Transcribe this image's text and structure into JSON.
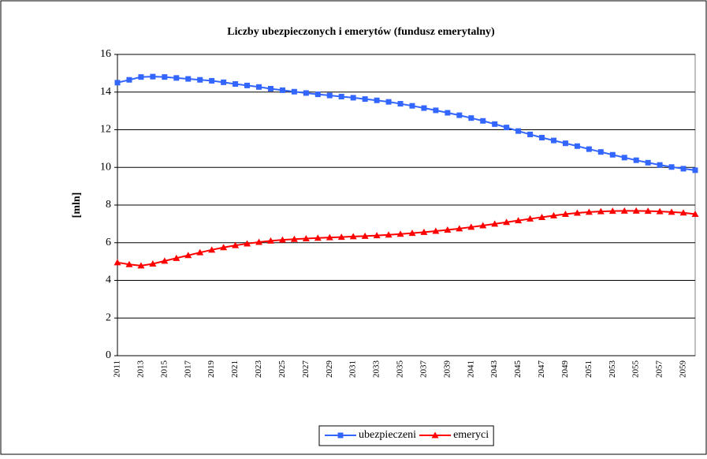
{
  "chart_data": {
    "type": "line",
    "title": "Liczby ubezpieczonych i emerytów (fundusz emerytalny)",
    "ylabel": "[mln]",
    "categories": [
      "2011",
      null,
      "2013",
      null,
      "2015",
      null,
      "2017",
      null,
      "2019",
      null,
      "2021",
      null,
      "2023",
      null,
      "2025",
      null,
      "2027",
      null,
      "2029",
      null,
      "2031",
      null,
      "2033",
      null,
      "2035",
      null,
      "2037",
      null,
      "2039",
      null,
      "2041",
      null,
      "2043",
      null,
      "2045",
      null,
      "2047",
      null,
      "2049",
      null,
      "2051",
      null,
      "2053",
      null,
      "2055",
      null,
      "2057",
      null,
      "2059",
      null
    ],
    "series": [
      {
        "name": "ubezpieczeni",
        "color": "#3366ff",
        "marker": "square",
        "values": [
          14.5,
          14.65,
          14.8,
          14.82,
          14.8,
          14.75,
          14.7,
          14.65,
          14.6,
          14.52,
          14.43,
          14.35,
          14.27,
          14.18,
          14.1,
          14.02,
          13.95,
          13.88,
          13.82,
          13.76,
          13.7,
          13.63,
          13.56,
          13.48,
          13.38,
          13.27,
          13.15,
          13.03,
          12.9,
          12.77,
          12.62,
          12.47,
          12.3,
          12.12,
          11.93,
          11.75,
          11.58,
          11.43,
          11.28,
          11.13,
          10.97,
          10.82,
          10.67,
          10.52,
          10.38,
          10.25,
          10.13,
          10.02,
          9.93,
          9.85
        ]
      },
      {
        "name": "emeryci",
        "color": "#ff0000",
        "marker": "triangle",
        "values": [
          4.95,
          4.85,
          4.78,
          4.88,
          5.03,
          5.18,
          5.33,
          5.48,
          5.62,
          5.75,
          5.86,
          5.95,
          6.03,
          6.1,
          6.15,
          6.19,
          6.22,
          6.25,
          6.28,
          6.3,
          6.33,
          6.35,
          6.38,
          6.42,
          6.46,
          6.51,
          6.56,
          6.62,
          6.68,
          6.75,
          6.83,
          6.91,
          7.0,
          7.09,
          7.18,
          7.27,
          7.35,
          7.44,
          7.52,
          7.58,
          7.63,
          7.66,
          7.68,
          7.69,
          7.69,
          7.68,
          7.66,
          7.63,
          7.59,
          7.52
        ]
      }
    ],
    "ylim": [
      0,
      16
    ],
    "yticks": [
      0,
      2,
      4,
      6,
      8,
      10,
      12,
      14,
      16
    ],
    "grid": true,
    "legend": "bottom"
  }
}
